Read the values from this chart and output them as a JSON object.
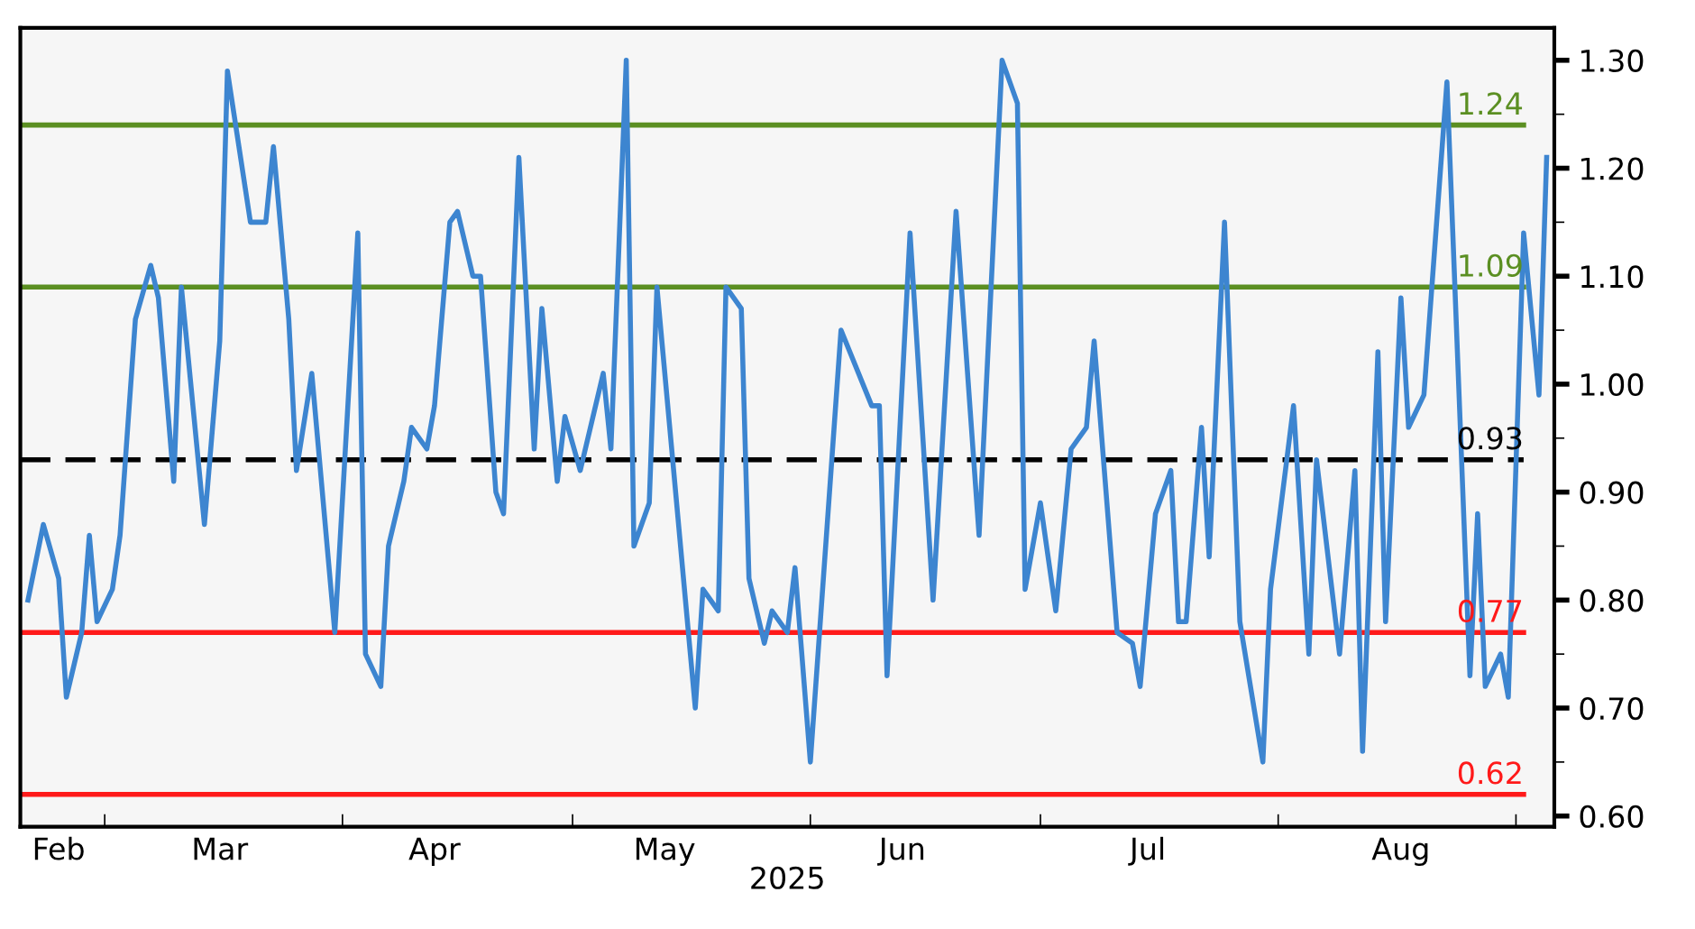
{
  "chart_data": {
    "type": "line",
    "xlabel": "2025",
    "x": [
      "2025-02-19",
      "2025-02-21",
      "2025-02-23",
      "2025-02-24",
      "2025-02-26",
      "2025-02-27",
      "2025-02-28",
      "2025-03-02",
      "2025-03-03",
      "2025-03-05",
      "2025-03-07",
      "2025-03-08",
      "2025-03-10",
      "2025-03-11",
      "2025-03-14",
      "2025-03-16",
      "2025-03-17",
      "2025-03-20",
      "2025-03-22",
      "2025-03-23",
      "2025-03-25",
      "2025-03-26",
      "2025-03-28",
      "2025-03-31",
      "2025-04-03",
      "2025-04-04",
      "2025-04-06",
      "2025-04-07",
      "2025-04-09",
      "2025-04-10",
      "2025-04-12",
      "2025-04-13",
      "2025-04-15",
      "2025-04-16",
      "2025-04-18",
      "2025-04-19",
      "2025-04-21",
      "2025-04-22",
      "2025-04-24",
      "2025-04-26",
      "2025-04-27",
      "2025-04-29",
      "2025-04-30",
      "2025-05-02",
      "2025-05-05",
      "2025-05-06",
      "2025-05-08",
      "2025-05-09",
      "2025-05-11",
      "2025-05-12",
      "2025-05-17",
      "2025-05-18",
      "2025-05-20",
      "2025-05-21",
      "2025-05-23",
      "2025-05-24",
      "2025-05-26",
      "2025-05-27",
      "2025-05-29",
      "2025-05-30",
      "2025-06-01",
      "2025-06-05",
      "2025-06-09",
      "2025-06-10",
      "2025-06-11",
      "2025-06-14",
      "2025-06-17",
      "2025-06-20",
      "2025-06-23",
      "2025-06-26",
      "2025-06-28",
      "2025-06-29",
      "2025-07-01",
      "2025-07-03",
      "2025-07-05",
      "2025-07-07",
      "2025-07-08",
      "2025-07-11",
      "2025-07-13",
      "2025-07-14",
      "2025-07-16",
      "2025-07-18",
      "2025-07-19",
      "2025-07-20",
      "2025-07-22",
      "2025-07-23",
      "2025-07-25",
      "2025-07-27",
      "2025-07-30",
      "2025-07-31",
      "2025-08-03",
      "2025-08-05",
      "2025-08-06",
      "2025-08-09",
      "2025-08-11",
      "2025-08-12",
      "2025-08-14",
      "2025-08-15",
      "2025-08-17",
      "2025-08-18",
      "2025-08-20",
      "2025-08-23",
      "2025-08-26",
      "2025-08-27",
      "2025-08-28",
      "2025-08-30",
      "2025-08-31",
      "2025-09-02",
      "2025-09-04",
      "2025-09-05"
    ],
    "series": [
      {
        "color": "#3d85d0",
        "values": [
          0.8,
          0.87,
          0.82,
          0.71,
          0.77,
          0.86,
          0.78,
          0.81,
          0.86,
          1.06,
          1.11,
          1.08,
          0.91,
          1.09,
          0.87,
          1.04,
          1.29,
          1.15,
          1.15,
          1.22,
          1.06,
          0.92,
          1.01,
          0.77,
          1.14,
          0.75,
          0.72,
          0.85,
          0.91,
          0.96,
          0.94,
          0.98,
          1.15,
          1.16,
          1.1,
          1.1,
          0.9,
          0.88,
          1.21,
          0.94,
          1.07,
          0.91,
          0.97,
          0.92,
          1.01,
          0.94,
          1.3,
          0.85,
          0.89,
          1.09,
          0.7,
          0.81,
          0.79,
          1.09,
          1.07,
          0.82,
          0.76,
          0.79,
          0.77,
          0.83,
          0.65,
          1.05,
          0.98,
          0.98,
          0.73,
          1.14,
          0.8,
          1.16,
          0.86,
          1.3,
          1.26,
          0.81,
          0.89,
          0.79,
          0.94,
          0.96,
          1.04,
          0.77,
          0.76,
          0.72,
          0.88,
          0.92,
          0.78,
          0.78,
          0.96,
          0.84,
          1.15,
          0.78,
          0.65,
          0.81,
          0.98,
          0.75,
          0.93,
          0.75,
          0.92,
          0.66,
          1.03,
          0.78,
          1.08,
          0.96,
          0.99,
          1.28,
          0.73,
          0.88,
          0.72,
          0.75,
          0.71,
          1.14,
          0.99,
          1.21
        ]
      }
    ],
    "xlim": [
      "2025-02-18",
      "2025-09-06"
    ],
    "xticks": [
      {
        "value": "2025-03-01",
        "label": null
      },
      {
        "value": "2025-04-01",
        "label": null
      },
      {
        "value": "2025-05-01",
        "label": null
      },
      {
        "value": "2025-06-01",
        "label": null
      },
      {
        "value": "2025-07-01",
        "label": null
      },
      {
        "value": "2025-08-01",
        "label": null
      },
      {
        "value": "2025-09-01",
        "label": null
      },
      {
        "value": "2025-02-23",
        "label": "Feb"
      },
      {
        "value": "2025-03-16",
        "label": "Mar"
      },
      {
        "value": "2025-04-13",
        "label": "Apr"
      },
      {
        "value": "2025-05-13",
        "label": "May"
      },
      {
        "value": "2025-06-13",
        "label": "Jun"
      },
      {
        "value": "2025-07-15",
        "label": "Jul"
      },
      {
        "value": "2025-08-17",
        "label": "Aug"
      }
    ],
    "ylim": [
      0.59,
      1.33
    ],
    "yticks": [
      {
        "value": 0.6,
        "label": "0.60"
      },
      {
        "value": 0.65,
        "label": null
      },
      {
        "value": 0.7,
        "label": "0.70"
      },
      {
        "value": 0.75,
        "label": null
      },
      {
        "value": 0.8,
        "label": "0.80"
      },
      {
        "value": 0.85,
        "label": null
      },
      {
        "value": 0.9,
        "label": "0.90"
      },
      {
        "value": 0.95,
        "label": null
      },
      {
        "value": 1.0,
        "label": "1.00"
      },
      {
        "value": 1.05,
        "label": null
      },
      {
        "value": 1.1,
        "label": "1.10"
      },
      {
        "value": 1.15,
        "label": null
      },
      {
        "value": 1.2,
        "label": "1.20"
      },
      {
        "value": 1.25,
        "label": null
      },
      {
        "value": 1.3,
        "label": "1.30"
      }
    ],
    "ref_lines": [
      {
        "axis": "y",
        "value": 1.24,
        "label": "1.24",
        "color": "#5b8f22",
        "line_style": "solid"
      },
      {
        "axis": "y",
        "value": 1.09,
        "label": "1.09",
        "color": "#5b8f22",
        "line_style": "solid"
      },
      {
        "axis": "y",
        "value": 0.93,
        "label": "0.93",
        "color": "#000000",
        "line_style": "dashed"
      },
      {
        "axis": "y",
        "value": 0.77,
        "label": "0.77",
        "color": "#ff1a1a",
        "line_style": "solid"
      },
      {
        "axis": "y",
        "value": 0.62,
        "label": "0.62",
        "color": "#ff1a1a",
        "line_style": "solid"
      }
    ],
    "grid": false,
    "legend": false,
    "marker": "none",
    "line_style": "solid"
  }
}
